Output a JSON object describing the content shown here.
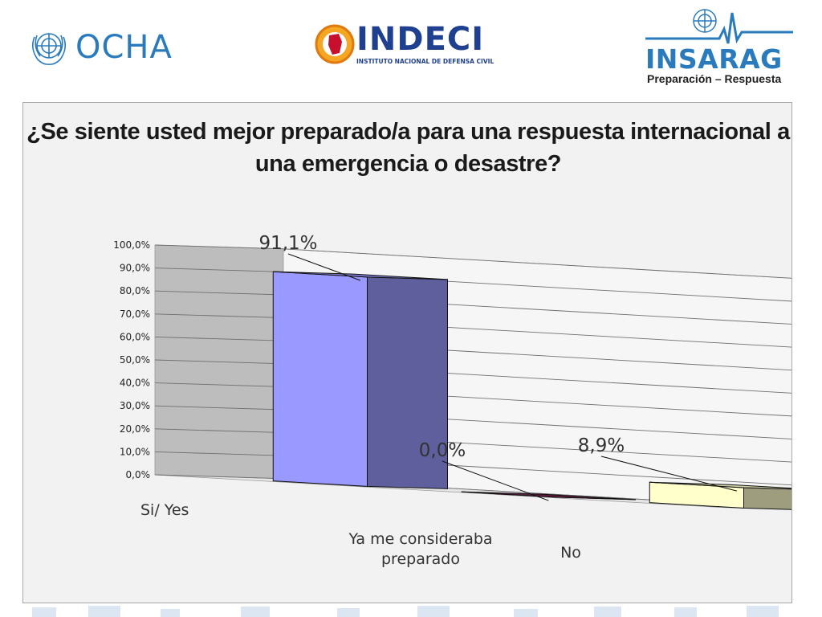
{
  "logos": {
    "ocha": {
      "text": "OCHA",
      "emblem": "un-emblem-icon"
    },
    "indeci": {
      "name": "INDECI",
      "subtitle": "INSTITUTO NACIONAL DE DEFENSA CIVIL",
      "emblem": "indeci-seal-icon"
    },
    "insarag": {
      "name": "INSARAG",
      "tagline": "Preparación – Respuesta",
      "emblem": "un-emblem-icon"
    }
  },
  "colors": {
    "brand_blue": "#2a7bbd",
    "indeci_navy": "#1f3f8f",
    "bar_si": "#9999ff",
    "bar_ya": "#7a1f4f",
    "bar_no": "#ffffcc"
  },
  "chart_data": {
    "type": "bar",
    "style": "3d-column",
    "title": "¿Se siente usted mejor preparado/a para una respuesta internacional a una emergencia o desastre?",
    "categories": [
      "Si/ Yes",
      "Ya me consideraba preparado",
      "No"
    ],
    "values": [
      91.1,
      0.0,
      8.9
    ],
    "data_labels": [
      "91,1%",
      "0,0%",
      "8,9%"
    ],
    "ylim": [
      0,
      100
    ],
    "ytick_labels": [
      "0,0%",
      "10,0%",
      "20,0%",
      "30,0%",
      "40,0%",
      "50,0%",
      "60,0%",
      "70,0%",
      "80,0%",
      "90,0%",
      "100,0%"
    ],
    "grid": true,
    "legend": "none"
  }
}
